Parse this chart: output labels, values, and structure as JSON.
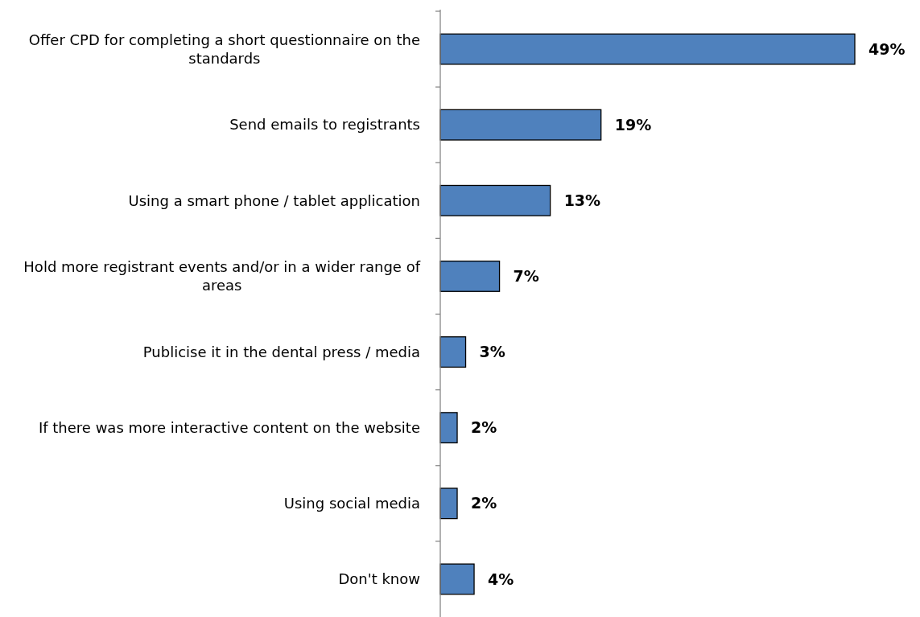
{
  "chart_data": {
    "type": "bar",
    "orientation": "horizontal",
    "categories": [
      "Offer CPD for completing a short questionnaire on the standards",
      "Send emails to registrants",
      "Using a smart phone / tablet application",
      "Hold more registrant events and/or in a wider range of areas",
      "Publicise it in the dental press / media",
      "If there was more interactive content on the website",
      "Using social media",
      "Don't know"
    ],
    "values": [
      49,
      19,
      13,
      7,
      3,
      2,
      2,
      4
    ],
    "value_labels": [
      "49%",
      "19%",
      "13%",
      "7%",
      "3%",
      "2%",
      "2%",
      "4%"
    ],
    "color": "#4f81bd"
  }
}
